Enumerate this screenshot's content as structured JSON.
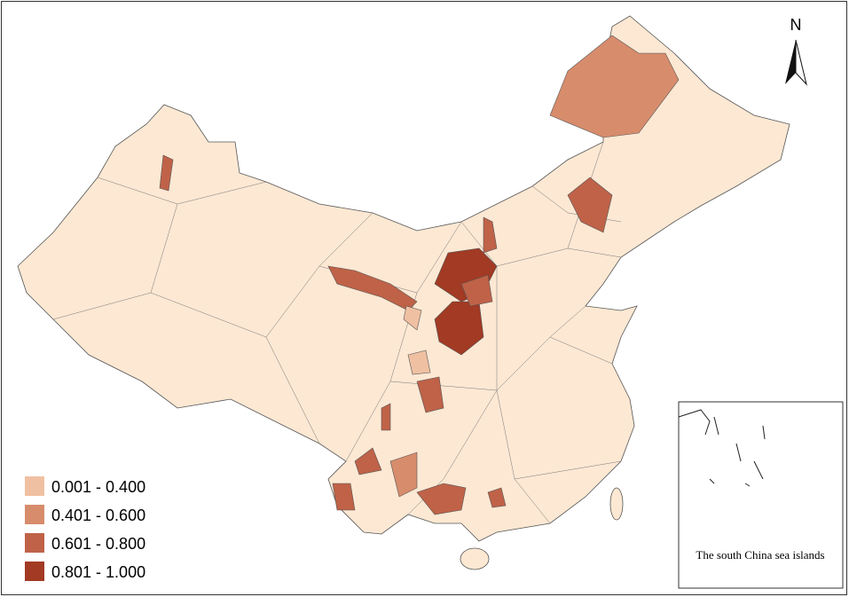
{
  "legend": {
    "items": [
      {
        "label": "0.001 - 0.400",
        "color": "#f0c0a2"
      },
      {
        "label": "0.401 - 0.600",
        "color": "#d78c6c"
      },
      {
        "label": "0.601 - 0.800",
        "color": "#bf6248"
      },
      {
        "label": "0.801 - 1.000",
        "color": "#a23a24"
      }
    ]
  },
  "north_arrow": {
    "label": "N"
  },
  "inset": {
    "caption": "The south China sea islands"
  }
}
